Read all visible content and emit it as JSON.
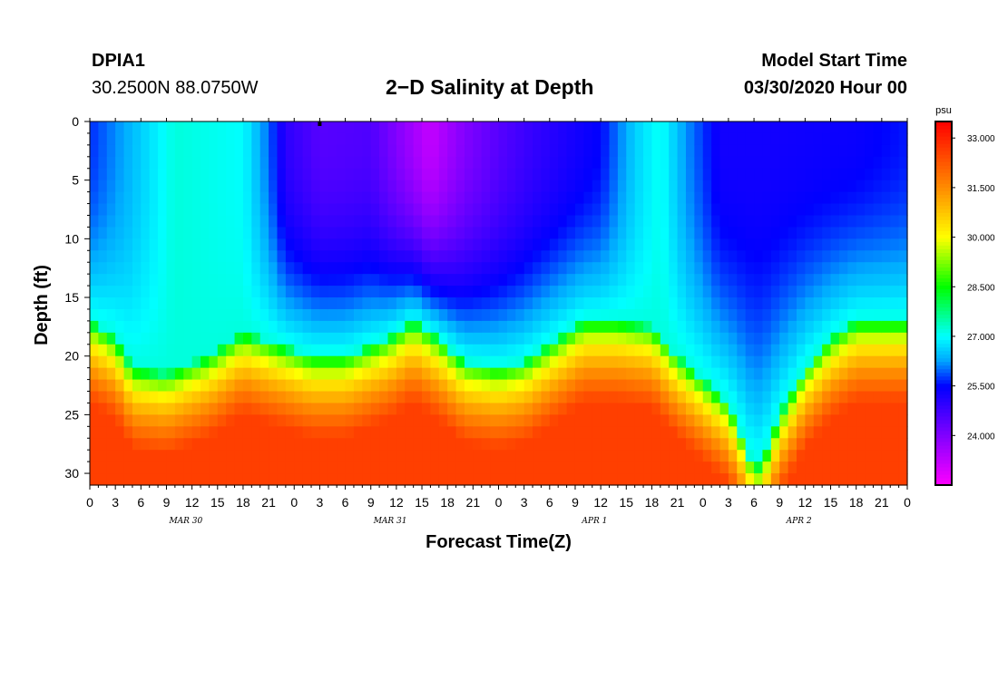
{
  "header": {
    "station_id": "DPIA1",
    "coords": "30.2500N 88.0750W",
    "title": "2−D Salinity at Depth",
    "start_label": "Model Start Time",
    "start_value": "03/30/2020 Hour 00"
  },
  "chart_data": {
    "type": "heatmap",
    "title": "2−D Salinity at Depth",
    "xlabel": "Forecast Time(Z)",
    "ylabel": "Depth (ft)",
    "x_range_hours": [
      0,
      72
    ],
    "y_range_ft": [
      0,
      31
    ],
    "y_ticks": [
      0,
      5,
      10,
      15,
      20,
      25,
      30
    ],
    "x_ticks": [
      {
        "h": 0,
        "label": "0"
      },
      {
        "h": 3,
        "label": "3"
      },
      {
        "h": 6,
        "label": "6"
      },
      {
        "h": 9,
        "label": "9"
      },
      {
        "h": 12,
        "label": "12"
      },
      {
        "h": 15,
        "label": "15"
      },
      {
        "h": 18,
        "label": "18"
      },
      {
        "h": 21,
        "label": "21"
      },
      {
        "h": 24,
        "label": "0"
      },
      {
        "h": 27,
        "label": "3"
      },
      {
        "h": 30,
        "label": "6"
      },
      {
        "h": 33,
        "label": "9"
      },
      {
        "h": 36,
        "label": "12"
      },
      {
        "h": 39,
        "label": "15"
      },
      {
        "h": 42,
        "label": "18"
      },
      {
        "h": 45,
        "label": "21"
      },
      {
        "h": 48,
        "label": "0"
      },
      {
        "h": 51,
        "label": "3"
      },
      {
        "h": 54,
        "label": "6"
      },
      {
        "h": 57,
        "label": "9"
      },
      {
        "h": 60,
        "label": "12"
      },
      {
        "h": 63,
        "label": "15"
      },
      {
        "h": 66,
        "label": "18"
      },
      {
        "h": 69,
        "label": "21"
      },
      {
        "h": 72,
        "label": "0"
      },
      {
        "h": 75,
        "label": "3"
      },
      {
        "h": 78,
        "label": "6"
      },
      {
        "h": 81,
        "label": "9"
      },
      {
        "h": 84,
        "label": "12"
      },
      {
        "h": 87,
        "label": "15"
      },
      {
        "h": 90,
        "label": "18"
      },
      {
        "h": 93,
        "label": "21"
      },
      {
        "h": 96,
        "label": "0"
      }
    ],
    "x_max_hours": 96,
    "date_labels": [
      {
        "h": 10,
        "label": "MAR 30"
      },
      {
        "h": 34,
        "label": "MAR 31"
      },
      {
        "h": 58,
        "label": "APR 1"
      },
      {
        "h": 82,
        "label": "APR 2"
      }
    ],
    "colorbar": {
      "unit": "psu",
      "min": 22.5,
      "max": 33.5,
      "ticks": [
        {
          "value": 33.0,
          "label": "33.000"
        },
        {
          "value": 31.5,
          "label": "31.500"
        },
        {
          "value": 30.0,
          "label": "30.000"
        },
        {
          "value": 28.5,
          "label": "28.500"
        },
        {
          "value": 27.0,
          "label": "27.000"
        },
        {
          "value": 25.5,
          "label": "25.500"
        },
        {
          "value": 24.0,
          "label": "24.000"
        }
      ]
    },
    "halocline_depth_ft": [
      {
        "h": 0,
        "d": 17
      },
      {
        "h": 3,
        "d": 18.5
      },
      {
        "h": 5,
        "d": 21
      },
      {
        "h": 9,
        "d": 21.5
      },
      {
        "h": 14,
        "d": 20
      },
      {
        "h": 18,
        "d": 18
      },
      {
        "h": 22,
        "d": 19
      },
      {
        "h": 26,
        "d": 20
      },
      {
        "h": 30,
        "d": 20
      },
      {
        "h": 35,
        "d": 18.5
      },
      {
        "h": 38,
        "d": 17
      },
      {
        "h": 41,
        "d": 18.5
      },
      {
        "h": 44,
        "d": 20.5
      },
      {
        "h": 48,
        "d": 21
      },
      {
        "h": 51,
        "d": 20.5
      },
      {
        "h": 55,
        "d": 18.5
      },
      {
        "h": 58,
        "d": 17
      },
      {
        "h": 62,
        "d": 17
      },
      {
        "h": 66,
        "d": 17.5
      },
      {
        "h": 69,
        "d": 20
      },
      {
        "h": 72,
        "d": 22
      },
      {
        "h": 75,
        "d": 24
      },
      {
        "h": 77,
        "d": 27.5
      },
      {
        "h": 78,
        "d": 29.5
      },
      {
        "h": 79,
        "d": 29
      },
      {
        "h": 81,
        "d": 25
      },
      {
        "h": 84,
        "d": 21
      },
      {
        "h": 87,
        "d": 18.5
      },
      {
        "h": 90,
        "d": 17
      },
      {
        "h": 93,
        "d": 17
      },
      {
        "h": 96,
        "d": 17
      }
    ],
    "surface_salinity_psu": [
      {
        "h": 0,
        "v": 25.7
      },
      {
        "h": 6,
        "v": 26.6
      },
      {
        "h": 10,
        "v": 27.2
      },
      {
        "h": 18,
        "v": 27.0
      },
      {
        "h": 21,
        "v": 26.0
      },
      {
        "h": 23,
        "v": 25.0
      },
      {
        "h": 27,
        "v": 24.5
      },
      {
        "h": 33,
        "v": 24.6
      },
      {
        "h": 36,
        "v": 24.0
      },
      {
        "h": 40,
        "v": 23.2
      },
      {
        "h": 44,
        "v": 24.0
      },
      {
        "h": 48,
        "v": 24.5
      },
      {
        "h": 52,
        "v": 24.9
      },
      {
        "h": 56,
        "v": 25.2
      },
      {
        "h": 60,
        "v": 25.5
      },
      {
        "h": 64,
        "v": 26.6
      },
      {
        "h": 67,
        "v": 27.1
      },
      {
        "h": 70,
        "v": 26.2
      },
      {
        "h": 74,
        "v": 25.3
      },
      {
        "h": 80,
        "v": 25.3
      },
      {
        "h": 90,
        "v": 25.4
      },
      {
        "h": 96,
        "v": 25.6
      }
    ],
    "bottom_salinity_psu": 32.6
  }
}
